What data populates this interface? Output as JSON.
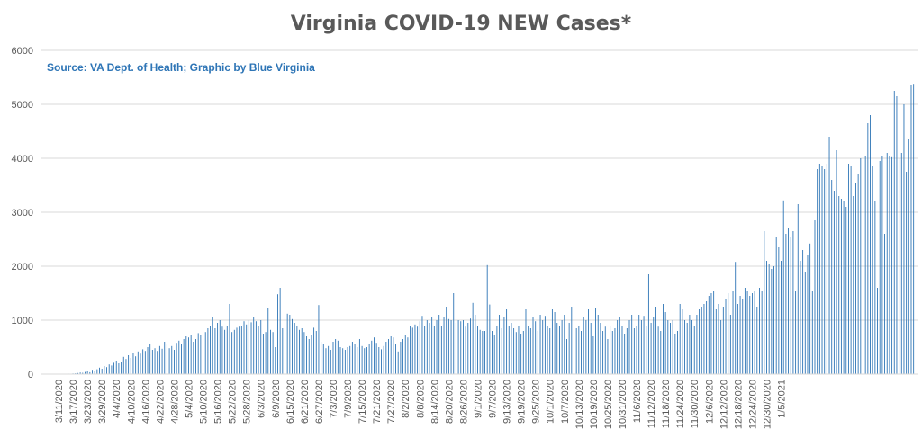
{
  "chart_data": {
    "type": "bar",
    "title": "Virginia COVID-19 NEW Cases*",
    "subtitle": "Source: VA Dept. of Health; Graphic by Blue Virginia",
    "xlabel": "",
    "ylabel": "",
    "ylim": [
      0,
      6000
    ],
    "yticks": [
      "0",
      "1000",
      "2000",
      "3000",
      "4000",
      "5000",
      "6000"
    ],
    "grid": true,
    "legend": "none",
    "bar_color": "#2e75b6",
    "grid_color": "#d9d9d9",
    "text_color": "#595959",
    "start_date": "2020-03-07",
    "tick_labels": [
      "3/11/2020",
      "3/17/2020",
      "3/23/2020",
      "3/29/2020",
      "4/4/2020",
      "4/10/2020",
      "4/16/2020",
      "4/22/2020",
      "4/28/2020",
      "5/4/2020",
      "5/10/2020",
      "5/16/2020",
      "5/22/2020",
      "5/28/2020",
      "6/3/2020",
      "6/9/2020",
      "6/15/2020",
      "6/21/2020",
      "6/27/2020",
      "7/3/2020",
      "7/9/2020",
      "7/15/2020",
      "7/21/2020",
      "7/27/2020",
      "8/2/2020",
      "8/8/2020",
      "8/14/2020",
      "8/20/2020",
      "8/26/2020",
      "9/1/2020",
      "9/7/2020",
      "9/13/2020",
      "9/19/2020",
      "9/25/2020",
      "10/1/2020",
      "10/7/2020",
      "10/13/2020",
      "10/19/2020",
      "10/25/2020",
      "10/31/2020",
      "11/6/2020",
      "11/12/2020",
      "11/18/2020",
      "11/24/2020",
      "11/30/2020",
      "12/6/2020",
      "12/12/2020",
      "12/18/2020",
      "12/24/2020",
      "12/30/2020",
      "1/5/2021"
    ],
    "values": [
      2,
      0,
      3,
      2,
      1,
      5,
      4,
      6,
      10,
      8,
      12,
      15,
      20,
      30,
      25,
      40,
      55,
      35,
      80,
      60,
      90,
      120,
      100,
      150,
      130,
      180,
      160,
      210,
      250,
      200,
      230,
      320,
      280,
      350,
      300,
      400,
      330,
      420,
      380,
      460,
      430,
      500,
      550,
      450,
      480,
      430,
      520,
      470,
      600,
      560,
      480,
      520,
      450,
      580,
      620,
      560,
      650,
      700,
      680,
      720,
      600,
      650,
      760,
      720,
      800,
      780,
      850,
      900,
      1050,
      850,
      950,
      1000,
      880,
      820,
      900,
      1300,
      780,
      820,
      860,
      880,
      900,
      980,
      920,
      1000,
      960,
      1050,
      980,
      900,
      1000,
      750,
      780,
      1230,
      820,
      780,
      500,
      1480,
      1600,
      850,
      1140,
      1120,
      1100,
      1020,
      950,
      900,
      820,
      850,
      780,
      700,
      650,
      720,
      860,
      800,
      1280,
      600,
      550,
      480,
      520,
      450,
      600,
      650,
      620,
      500,
      480,
      450,
      500,
      520,
      600,
      550,
      500,
      650,
      520,
      480,
      500,
      550,
      620,
      680,
      580,
      500,
      460,
      520,
      600,
      650,
      700,
      680,
      550,
      420,
      600,
      650,
      720,
      680,
      900,
      860,
      920,
      880,
      980,
      1080,
      900,
      1000,
      950,
      1050,
      900,
      1000,
      1100,
      900,
      1050,
      1250,
      1020,
      1000,
      1500,
      950,
      1000,
      980,
      1000,
      880,
      950,
      1030,
      1320,
      1100,
      900,
      820,
      800,
      800,
      2020,
      1290,
      800,
      720,
      900,
      1100,
      850,
      1060,
      1200,
      900,
      950,
      850,
      780,
      900,
      750,
      800,
      1200,
      900,
      850,
      1050,
      980,
      800,
      1100,
      1000,
      1080,
      900,
      850,
      1200,
      1150,
      950,
      900,
      1000,
      1100,
      650,
      950,
      1250,
      1280,
      850,
      900,
      800,
      1060,
      1000,
      1200,
      950,
      700,
      1220,
      1100,
      950,
      800,
      880,
      650,
      900,
      800,
      850,
      1000,
      1050,
      900,
      750,
      850,
      1000,
      1100,
      850,
      900,
      1100,
      1000,
      1080,
      900,
      1850,
      950,
      1050,
      1250,
      880,
      800,
      1300,
      1150,
      1000,
      950,
      1000,
      750,
      800,
      1300,
      1200,
      1000,
      950,
      1100,
      1000,
      900,
      1100,
      1200,
      1250,
      1300,
      1350,
      1450,
      1500,
      1550,
      1200,
      1300,
      1000,
      1250,
      1400,
      1500,
      1100,
      1550,
      2080,
      1300,
      1450,
      1400,
      1600,
      1550,
      1450,
      1500,
      1550,
      1250,
      1600,
      1550,
      2650,
      2100,
      2050,
      1950,
      2000,
      2550,
      2350,
      2100,
      3220,
      2600,
      2700,
      2550,
      2650,
      1550,
      3150,
      2100,
      2300,
      1900,
      2200,
      2420,
      1550,
      2850,
      3800,
      3900,
      3850,
      3800,
      3900,
      4400,
      3600,
      3400,
      4150,
      3300,
      3250,
      3200,
      3100,
      3900,
      3850,
      3300,
      3550,
      3700,
      4000,
      3600,
      4050,
      4650,
      4800,
      3850,
      3200,
      1600,
      3950,
      4050,
      2600,
      4100,
      4050,
      4020,
      5250,
      5150,
      4000,
      4100,
      5000,
      3750,
      4350,
      5350,
      5380
    ]
  }
}
